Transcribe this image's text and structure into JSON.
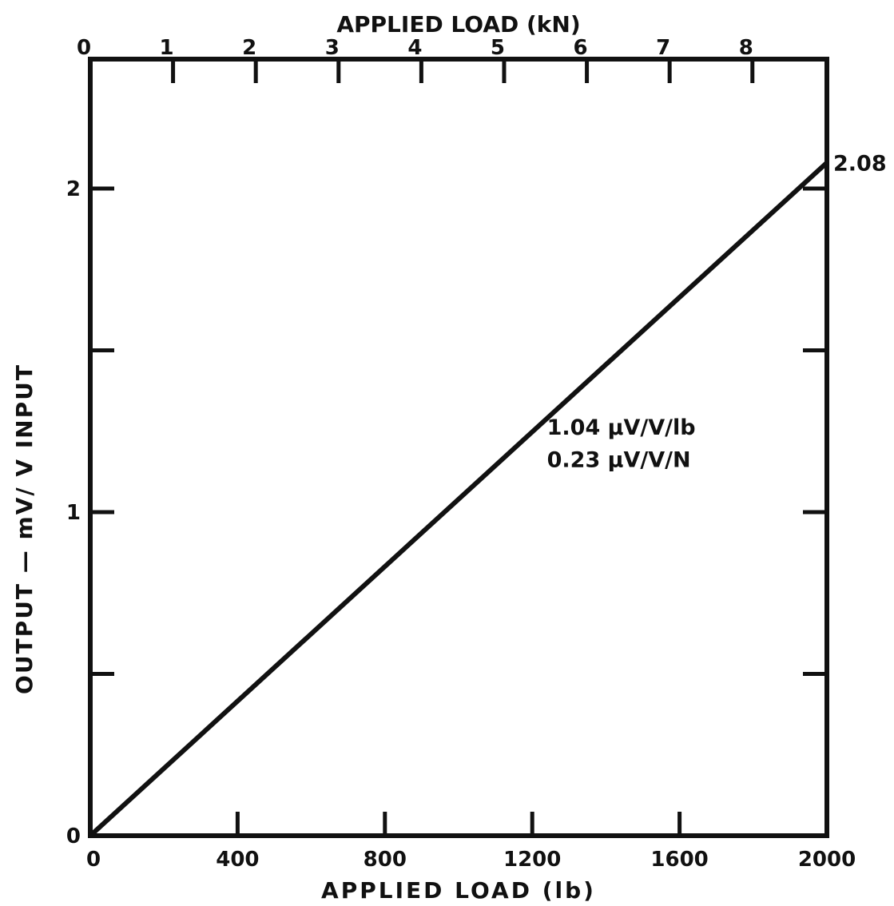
{
  "chart_data": {
    "type": "line",
    "title": "",
    "xlabel": "APPLIED LOAD (lb)",
    "ylabel": "OUTPUT — mV/ V INPUT",
    "x2label": "APPLIED LOAD (kN)",
    "xlim": [
      0,
      2000
    ],
    "ylim": [
      0,
      2.4
    ],
    "x2lim": [
      0,
      8.9
    ],
    "grid": false,
    "x_ticks": [
      {
        "value": 0,
        "label": "0"
      },
      {
        "value": 400,
        "label": "400"
      },
      {
        "value": 800,
        "label": "800"
      },
      {
        "value": 1200,
        "label": "1200"
      },
      {
        "value": 1600,
        "label": "1600"
      },
      {
        "value": 2000,
        "label": "2000"
      }
    ],
    "x2_ticks": [
      {
        "value": 0,
        "label": "0"
      },
      {
        "value": 1,
        "label": "1"
      },
      {
        "value": 2,
        "label": "2"
      },
      {
        "value": 3,
        "label": "3"
      },
      {
        "value": 4,
        "label": "4"
      },
      {
        "value": 5,
        "label": "5"
      },
      {
        "value": 6,
        "label": "6"
      },
      {
        "value": 7,
        "label": "7"
      },
      {
        "value": 8,
        "label": "8"
      }
    ],
    "y_ticks": [
      {
        "value": 0,
        "label": "0"
      },
      {
        "value": 0.5,
        "label": ""
      },
      {
        "value": 1,
        "label": "1"
      },
      {
        "value": 1.5,
        "label": ""
      },
      {
        "value": 2,
        "label": "2"
      }
    ],
    "series": [
      {
        "x": [
          0,
          2000
        ],
        "y": [
          0,
          2.08
        ]
      }
    ],
    "annotations": [
      {
        "text": "2.08",
        "x": 2000,
        "y": 2.08,
        "anchor": "right-outside"
      },
      {
        "text": "1.04 µV/V/lb",
        "x": 1240,
        "y": 1.24
      },
      {
        "text": "0.23 µV/V/N",
        "x": 1240,
        "y": 1.14
      }
    ]
  }
}
